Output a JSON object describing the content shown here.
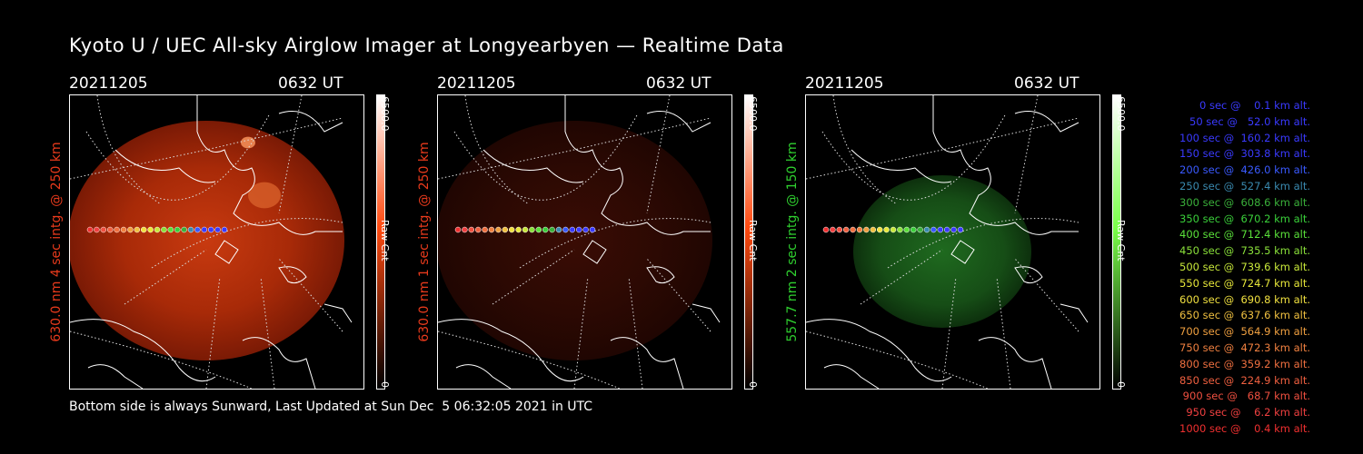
{
  "title": "Kyoto U / UEC All-sky Airglow Imager at Longyearbyen — Realtime Data",
  "panels": [
    {
      "date": "20211205",
      "time": "0632 UT",
      "side_label": "630.0 nm 4 sec intg. @ 250 km",
      "label_color": "#e83a1c",
      "cbar_max": "6500.0",
      "cbar_unit": "Raw Cnt",
      "cbar_min": "0",
      "cbar_color": "#ff4a10",
      "intensity": 0.85
    },
    {
      "date": "20211205",
      "time": "0632 UT",
      "side_label": "630.0 nm 1 sec intg. @ 250 km",
      "label_color": "#e83a1c",
      "cbar_max": "6500.0",
      "cbar_unit": "Raw Cnt",
      "cbar_min": "0",
      "cbar_color": "#ff4a10",
      "intensity": 0.3
    },
    {
      "date": "20211205",
      "time": "0632 UT",
      "side_label": "557.7 nm 2 sec intg. @ 150 km",
      "label_color": "#2fd02f",
      "cbar_max": "6500.0",
      "cbar_unit": "Raw Cnt",
      "cbar_min": "0",
      "cbar_color": "#7aff4a",
      "intensity": 0.45
    }
  ],
  "legend": [
    {
      "text": "   0 sec @    0.1 km alt.",
      "color": "#3a3aff"
    },
    {
      "text": "  50 sec @   52.0 km alt.",
      "color": "#3a3aff"
    },
    {
      "text": " 100 sec @  160.2 km alt.",
      "color": "#3a3aff"
    },
    {
      "text": " 150 sec @  303.8 km alt.",
      "color": "#3a3aff"
    },
    {
      "text": " 200 sec @  426.0 km alt.",
      "color": "#3a5aff"
    },
    {
      "text": " 250 sec @  527.4 km alt.",
      "color": "#3a8ab0"
    },
    {
      "text": " 300 sec @  608.6 km alt.",
      "color": "#3ab03a"
    },
    {
      "text": " 350 sec @  670.2 km alt.",
      "color": "#3ad03a"
    },
    {
      "text": " 400 sec @  712.4 km alt.",
      "color": "#5ae03a"
    },
    {
      "text": " 450 sec @  735.5 km alt.",
      "color": "#8ae03a"
    },
    {
      "text": " 500 sec @  739.6 km alt.",
      "color": "#c8e83a"
    },
    {
      "text": " 550 sec @  724.7 km alt.",
      "color": "#e8e83a"
    },
    {
      "text": " 600 sec @  690.8 km alt.",
      "color": "#f0e040"
    },
    {
      "text": " 650 sec @  637.6 km alt.",
      "color": "#f0c040"
    },
    {
      "text": " 700 sec @  564.9 km alt.",
      "color": "#f0a040"
    },
    {
      "text": " 750 sec @  472.3 km alt.",
      "color": "#f08040"
    },
    {
      "text": " 800 sec @  359.2 km alt.",
      "color": "#f07040"
    },
    {
      "text": " 850 sec @  224.9 km alt.",
      "color": "#f06040"
    },
    {
      "text": " 900 sec @   68.7 km alt.",
      "color": "#f05040"
    },
    {
      "text": " 950 sec @    6.2 km alt.",
      "color": "#f04040"
    },
    {
      "text": "1000 sec @    0.4 km alt.",
      "color": "#f03030"
    }
  ],
  "footer": "Bottom side is always Sunward, Last Updated at Sun Dec  5 06:32:05 2021 in UTC"
}
